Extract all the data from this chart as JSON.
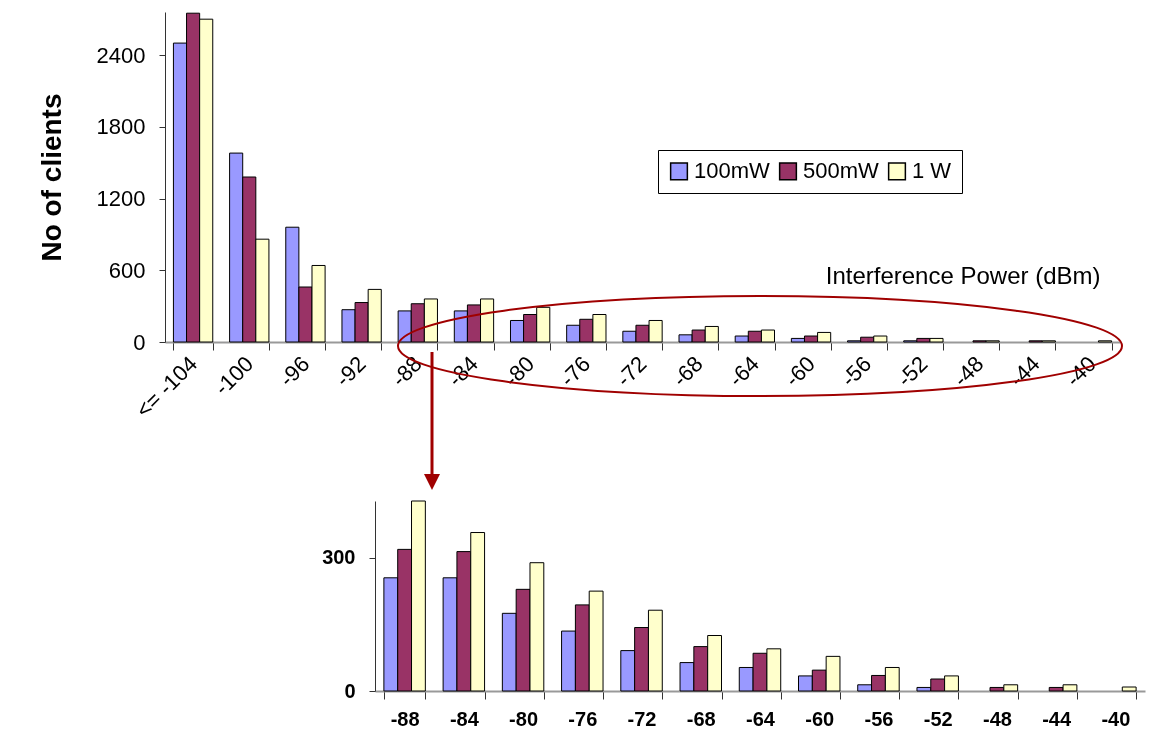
{
  "chart_data": [
    {
      "type": "bar",
      "xlabel": "Interference Power (dBm)",
      "ylabel": "No of clients",
      "categories": [
        "<= -104",
        "-100",
        "-96",
        "-92",
        "-88",
        "-84",
        "-80",
        "-76",
        "-72",
        "-68",
        "-64",
        "-60",
        "-56",
        "-52",
        "-48",
        "-44",
        "-40"
      ],
      "ylim": [
        0,
        2760
      ],
      "yticks": [
        0,
        600,
        1200,
        1800,
        2400
      ],
      "legend": "top right",
      "series": [
        {
          "name": "100mW",
          "color": "#9999ff",
          "values": [
            2500,
            1580,
            960,
            270,
            260,
            260,
            180,
            140,
            90,
            60,
            50,
            30,
            10,
            10,
            0,
            0,
            0
          ]
        },
        {
          "name": "500mW",
          "color": "#993366",
          "values": [
            2750,
            1380,
            460,
            330,
            320,
            310,
            230,
            190,
            140,
            100,
            90,
            50,
            40,
            30,
            10,
            10,
            0
          ]
        },
        {
          "name": "1 W",
          "color": "#ffffcc",
          "values": [
            2700,
            860,
            640,
            440,
            360,
            360,
            290,
            230,
            180,
            130,
            100,
            80,
            50,
            30,
            10,
            10,
            10
          ]
        }
      ]
    },
    {
      "type": "bar",
      "categories": [
        "-88",
        "-84",
        "-80",
        "-76",
        "-72",
        "-68",
        "-64",
        "-60",
        "-56",
        "-52",
        "-48",
        "-44",
        "-40"
      ],
      "ylim": [
        0,
        428
      ],
      "yticks": [
        0,
        300
      ],
      "series": [
        {
          "color": "#9999ff",
          "values": [
            255,
            255,
            175,
            135,
            91,
            64,
            53,
            34,
            14,
            8,
            0,
            0,
            0
          ]
        },
        {
          "color": "#993366",
          "values": [
            319,
            314,
            229,
            194,
            143,
            100,
            85,
            47,
            35,
            27,
            8,
            8,
            0
          ]
        },
        {
          "color": "#ffffcc",
          "values": [
            428,
            357,
            289,
            225,
            182,
            125,
            95,
            78,
            53,
            34,
            14,
            14,
            9
          ]
        }
      ]
    }
  ]
}
